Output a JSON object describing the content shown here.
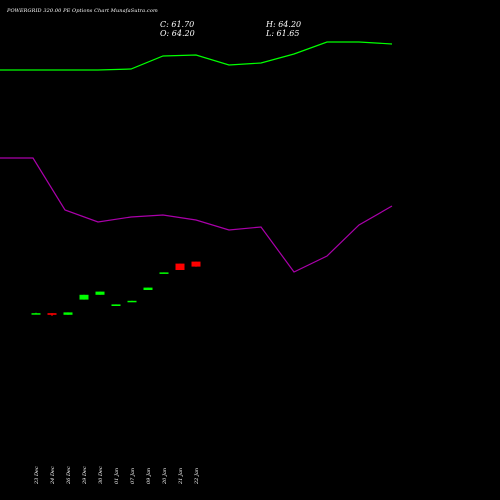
{
  "header": {
    "title": "POWERGRID 320.00  PE Options  Chart MunafaSutra.com",
    "close": "C: 61.70",
    "high": "H: 64.20",
    "open": "O: 64.20",
    "low": "L: 61.65"
  },
  "chart_data": {
    "type": "candlestick",
    "title": "POWERGRID 320.00  PE Options  Chart MunafaSutra.com",
    "grid": false,
    "background": "#000000",
    "colors": {
      "up": "#00ff00",
      "down": "#ff0000",
      "line1": "#00ff00",
      "line2": "#aa00aa"
    },
    "x_ticks": [
      "23 Dec",
      "24 Dec",
      "26 Dec",
      "29 Dec",
      "30 Dec",
      "01 Jan",
      "07 Jan",
      "09 Jan",
      "20 Jan",
      "21 Jan",
      "22 Jan"
    ],
    "candles": [
      {
        "date": "23 Dec",
        "open": 38.4,
        "close": 38.4,
        "high": 38.6,
        "low": 38.2
      },
      {
        "date": "24 Dec",
        "open": 38.4,
        "close": 37.6,
        "high": 38.4,
        "low": 37.0
      },
      {
        "date": "26 Dec",
        "open": 37.6,
        "close": 38.8,
        "high": 38.8,
        "low": 37.6
      },
      {
        "date": "29 Dec",
        "open": 45.2,
        "close": 47.6,
        "high": 47.6,
        "low": 45.2
      },
      {
        "date": "30 Dec",
        "open": 47.6,
        "close": 49.2,
        "high": 49.2,
        "low": 47.6
      },
      {
        "date": "01 Jan",
        "open": 42.0,
        "close": 42.8,
        "high": 42.8,
        "low": 42.0
      },
      {
        "date": "07 Jan",
        "open": 44.4,
        "close": 44.6,
        "high": 44.6,
        "low": 44.4
      },
      {
        "date": "09 Jan",
        "open": 50.0,
        "close": 51.2,
        "high": 51.2,
        "low": 50.0
      },
      {
        "date": "20 Jan",
        "open": 58.6,
        "close": 58.8,
        "high": 58.8,
        "low": 58.6
      },
      {
        "date": "21 Jan",
        "open": 63.2,
        "close": 60.0,
        "high": 63.2,
        "low": 60.0
      },
      {
        "date": "22 Jan",
        "open": 64.2,
        "close": 61.7,
        "high": 64.2,
        "low": 61.65
      }
    ],
    "series": [
      {
        "values": [
          250,
          250,
          250,
          250,
          251,
          264,
          265,
          255,
          257,
          266,
          278,
          278,
          276
        ]
      },
      {
        "values": [
          162,
          162,
          110,
          98,
          103,
          105,
          100,
          90,
          93,
          48,
          64,
          95,
          114
        ]
      }
    ],
    "ylim": [
      0,
      300
    ]
  }
}
